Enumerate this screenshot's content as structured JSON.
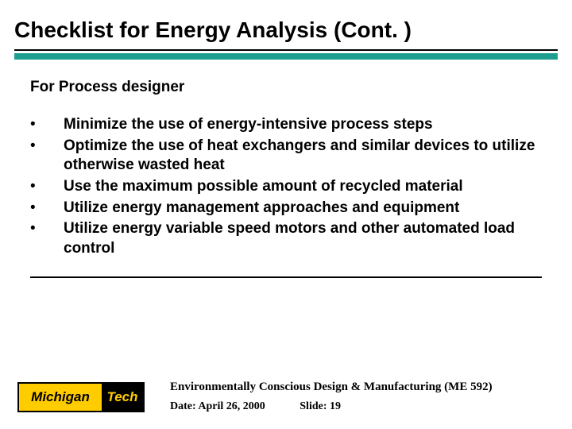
{
  "title": "Checklist for Energy Analysis (Cont. )",
  "accent_color": "#1e9e8f",
  "subhead": "For Process designer",
  "bullets": [
    "Minimize the use of energy-intensive process steps",
    "Optimize the use of heat exchangers and similar devices to utilize otherwise wasted heat",
    "Use the maximum possible amount of recycled material",
    "Utilize energy management approaches and equipment",
    "Utilize energy variable speed motors and other automated load control"
  ],
  "logo": {
    "left": "Michigan",
    "right": "Tech",
    "left_bg": "#ffcc00",
    "right_bg": "#000000"
  },
  "footer": {
    "course": "Environmentally Conscious Design & Manufacturing (ME 592)",
    "date_label": "Date: April 26, 2000",
    "slide_label": "Slide: 19"
  }
}
